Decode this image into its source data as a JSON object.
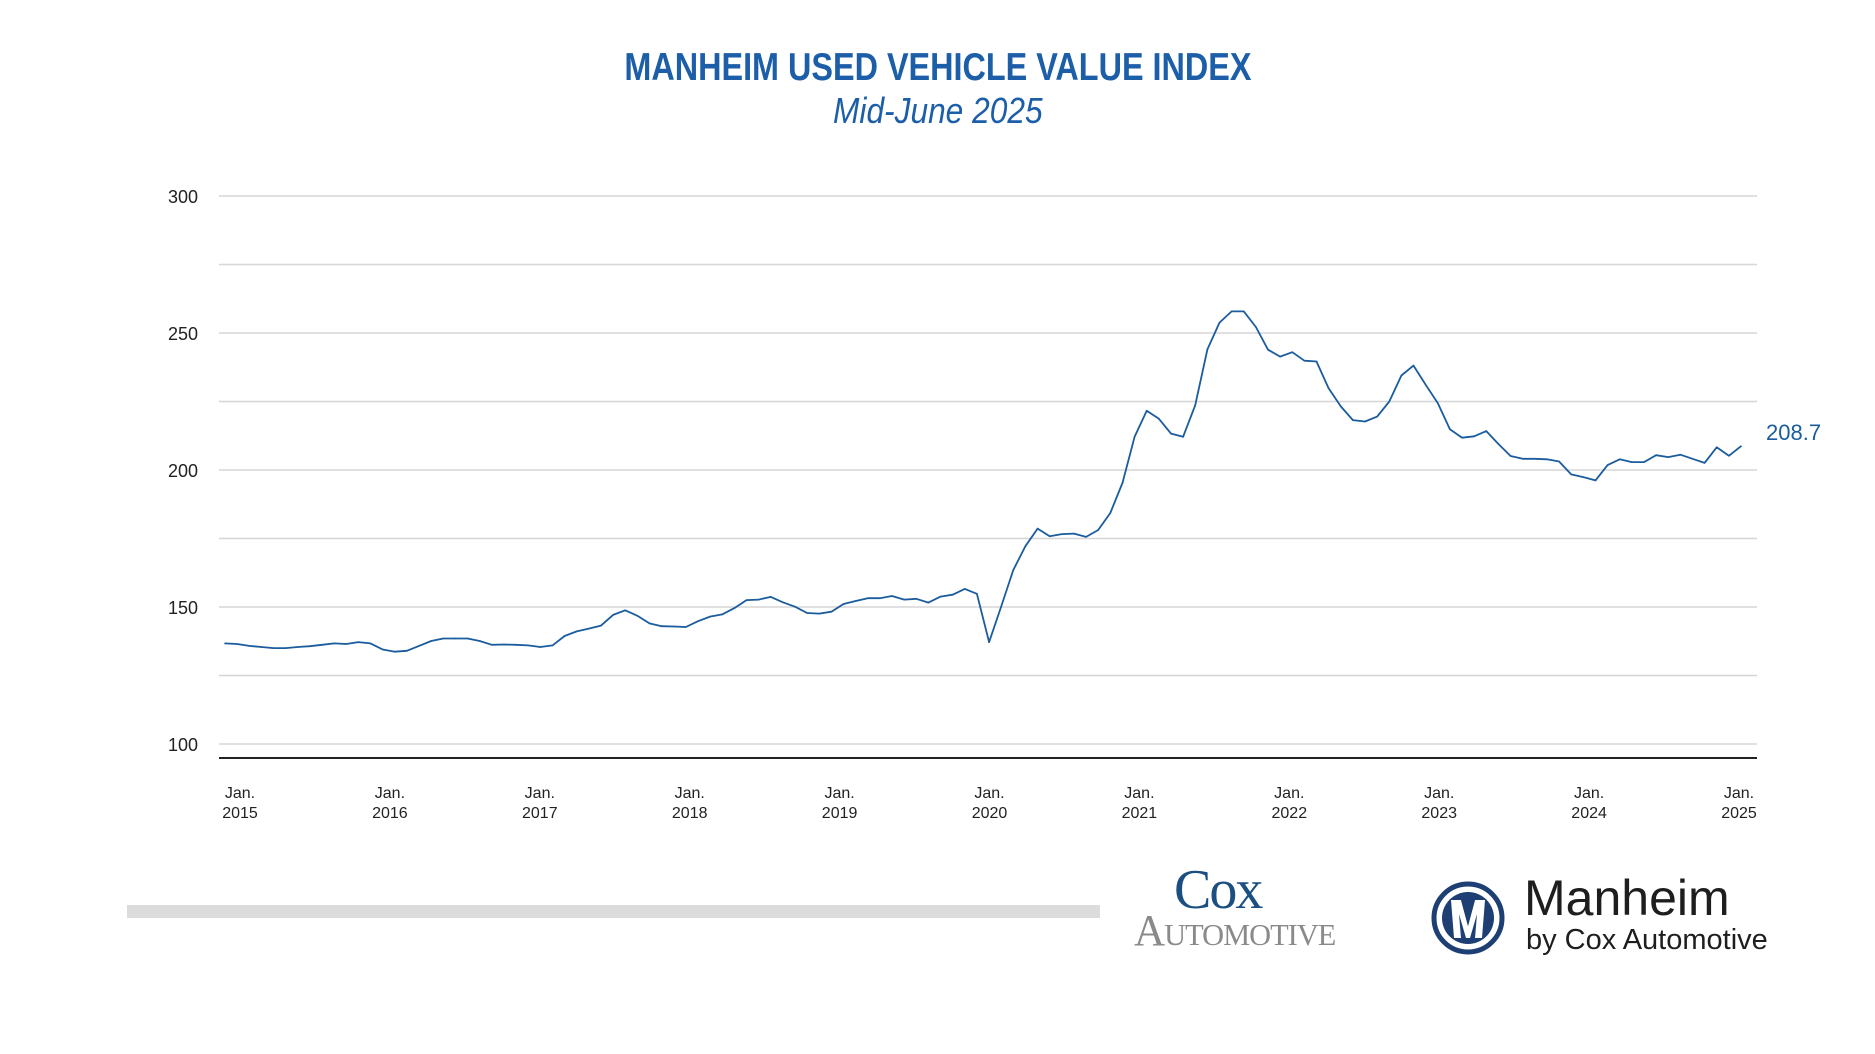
{
  "header": {
    "title": "MANHEIM USED VEHICLE VALUE INDEX",
    "subtitle": "Mid-June 2025"
  },
  "chart_data": {
    "type": "line",
    "title": "MANHEIM USED VEHICLE VALUE INDEX",
    "subtitle": "Mid-June 2025",
    "xlabel": "",
    "ylabel": "",
    "ylim": [
      100,
      300
    ],
    "yticks": [
      100,
      150,
      200,
      250,
      300
    ],
    "gridlines": [
      100,
      125,
      150,
      175,
      200,
      225,
      250,
      275,
      300
    ],
    "grid": true,
    "xtick_labels": [
      {
        "month": "Jan.",
        "year": "2015"
      },
      {
        "month": "Jan.",
        "year": "2016"
      },
      {
        "month": "Jan.",
        "year": "2017"
      },
      {
        "month": "Jan.",
        "year": "2018"
      },
      {
        "month": "Jan.",
        "year": "2019"
      },
      {
        "month": "Jan.",
        "year": "2020"
      },
      {
        "month": "Jan.",
        "year": "2021"
      },
      {
        "month": "Jan.",
        "year": "2022"
      },
      {
        "month": "Jan.",
        "year": "2023"
      },
      {
        "month": "Jan.",
        "year": "2024"
      },
      {
        "month": "Jan.",
        "year": "2025"
      }
    ],
    "line_color": "#1a5c9e",
    "end_label": "208.7",
    "series": [
      {
        "values": [
          136.7,
          136.5,
          135.8,
          135.4,
          135.0,
          135.0,
          135.4,
          135.7,
          136.2,
          136.7,
          136.5,
          137.2,
          136.7,
          134.5,
          133.7,
          134.0,
          135.8,
          137.6,
          138.5,
          138.5,
          138.5,
          137.6,
          136.2,
          136.3,
          136.2,
          136.0,
          135.4,
          136.0,
          139.4,
          141.1,
          142.1,
          143.2,
          147.1,
          148.8,
          146.8,
          144.0,
          143.0,
          142.9,
          142.7,
          144.8,
          146.5,
          147.3,
          149.6,
          152.5,
          152.7,
          153.7,
          151.7,
          150.1,
          147.8,
          147.6,
          148.3,
          151.1,
          152.2,
          153.2,
          153.2,
          154.0,
          152.7,
          153.0,
          151.6,
          153.8,
          154.5,
          156.6,
          154.8,
          137.2,
          150.2,
          163.5,
          172.2,
          178.6,
          175.8,
          176.6,
          176.8,
          175.6,
          178.1,
          184.3,
          195.3,
          212.1,
          221.6,
          218.7,
          213.3,
          212.1,
          223.6,
          244.0,
          253.8,
          257.9,
          257.9,
          252.2,
          243.9,
          241.4,
          243.0,
          239.9,
          239.6,
          229.8,
          223.2,
          218.2,
          217.7,
          219.5,
          225.0,
          234.5,
          238.1,
          231.1,
          224.4,
          214.9,
          211.8,
          212.3,
          214.2,
          209.5,
          205.1,
          204.1,
          204.1,
          203.9,
          203.1,
          198.4,
          197.4,
          196.2,
          201.8,
          203.9,
          202.9,
          202.9,
          205.4,
          204.7,
          205.6,
          204.1,
          202.6,
          208.3,
          205.2,
          208.7
        ]
      }
    ]
  },
  "footer": {
    "cox_logo": {
      "line1": "Cox",
      "line2": "Automotive",
      "color_primary": "#1b4f82",
      "color_secondary": "#8a8a8a"
    },
    "manheim_logo": {
      "name": "Manheim",
      "tagline": "by Cox Automotive",
      "color": "#1d3f73"
    }
  }
}
